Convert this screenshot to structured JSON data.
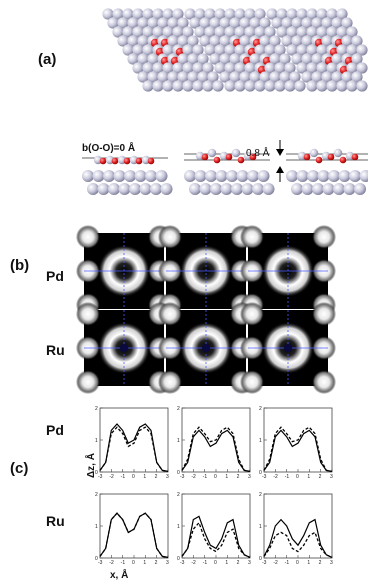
{
  "panel_labels": {
    "a": "(a)",
    "b": "(b)",
    "c": "(c)"
  },
  "side_annotation": {
    "left": "b(O-O)=0 Å",
    "mid": "0.8 Å"
  },
  "row_labels": {
    "pd": "Pd",
    "ru": "Ru"
  },
  "plot_row_labels": {
    "pd": "Pd",
    "ru": "Ru"
  },
  "axis": {
    "xlabel": "x, Å",
    "ylabel": "Δz, Å"
  },
  "chart_data": [
    {
      "type": "line",
      "x": [
        -3,
        -2.5,
        -2,
        -1.5,
        -1,
        -0.5,
        0,
        0.5,
        1,
        1.5,
        2,
        2.5,
        3
      ],
      "series": [
        {
          "values": [
            0.05,
            0.3,
            1.3,
            1.5,
            1.3,
            0.9,
            1.0,
            1.4,
            1.5,
            1.3,
            0.3,
            0.05,
            0.02
          ]
        },
        {
          "values": [
            0.05,
            0.3,
            1.2,
            1.4,
            1.2,
            0.8,
            0.9,
            1.3,
            1.4,
            1.2,
            0.3,
            0.05,
            0.02
          ]
        }
      ],
      "ylim": [
        0,
        2
      ],
      "xticks": [
        -3,
        -2,
        -1,
        0,
        1,
        2,
        3
      ],
      "yticks": [
        0,
        1,
        2
      ]
    },
    {
      "type": "line",
      "x": [
        -3,
        -2.5,
        -2,
        -1.5,
        -1,
        -0.5,
        0,
        0.5,
        1,
        1.5,
        2,
        2.5,
        3
      ],
      "series": [
        {
          "values": [
            0.05,
            0.3,
            1.1,
            1.3,
            1.1,
            0.8,
            0.9,
            1.2,
            1.3,
            1.1,
            0.3,
            0.05,
            0.02
          ]
        },
        {
          "values": [
            0.05,
            0.4,
            1.2,
            1.4,
            1.2,
            0.95,
            1.0,
            1.3,
            1.4,
            1.2,
            0.4,
            0.05,
            0.02
          ]
        }
      ],
      "ylim": [
        0,
        2
      ],
      "xticks": [
        -3,
        -2,
        -1,
        0,
        1,
        2,
        3
      ],
      "yticks": [
        0,
        1,
        2
      ]
    },
    {
      "type": "line",
      "x": [
        -3,
        -2.5,
        -2,
        -1.5,
        -1,
        -0.5,
        0,
        0.5,
        1,
        1.5,
        2,
        2.5,
        3
      ],
      "series": [
        {
          "values": [
            0.05,
            0.3,
            1.1,
            1.3,
            1.1,
            0.8,
            0.9,
            1.2,
            1.3,
            1.1,
            0.3,
            0.05,
            0.02
          ]
        },
        {
          "values": [
            0.05,
            0.4,
            1.2,
            1.4,
            1.2,
            0.95,
            1.0,
            1.3,
            1.4,
            1.2,
            0.4,
            0.05,
            0.02
          ]
        }
      ],
      "ylim": [
        0,
        2
      ],
      "xticks": [
        -3,
        -2,
        -1,
        0,
        1,
        2,
        3
      ],
      "yticks": [
        0,
        1,
        2
      ]
    },
    {
      "type": "line",
      "x": [
        -3,
        -2.5,
        -2,
        -1.5,
        -1,
        -0.5,
        0,
        0.5,
        1,
        1.5,
        2,
        2.5,
        3
      ],
      "series": [
        {
          "values": [
            0.05,
            0.3,
            1.2,
            1.4,
            1.2,
            0.8,
            0.9,
            1.3,
            1.4,
            1.2,
            0.3,
            0.05,
            0.02
          ]
        },
        {
          "values": [
            0.05,
            0.3,
            1.2,
            1.4,
            1.2,
            0.8,
            0.9,
            1.3,
            1.4,
            1.2,
            0.3,
            0.05,
            0.02
          ]
        }
      ],
      "ylim": [
        0,
        2
      ],
      "xticks": [
        -3,
        -2,
        -1,
        0,
        1,
        2,
        3
      ],
      "yticks": [
        0,
        1,
        2
      ]
    },
    {
      "type": "line",
      "x": [
        -3,
        -2.5,
        -2,
        -1.5,
        -1,
        -0.5,
        0,
        0.5,
        1,
        1.5,
        2,
        2.5,
        3
      ],
      "series": [
        {
          "values": [
            0.05,
            0.3,
            1.2,
            1.3,
            0.8,
            0.4,
            0.3,
            0.6,
            1.1,
            1.2,
            0.4,
            0.1,
            0.02
          ]
        },
        {
          "values": [
            0.05,
            0.3,
            0.9,
            1.1,
            0.6,
            0.3,
            0.2,
            0.4,
            0.8,
            0.9,
            0.3,
            0.1,
            0.02
          ]
        }
      ],
      "ylim": [
        0,
        2
      ],
      "xticks": [
        -3,
        -2,
        -1,
        0,
        1,
        2,
        3
      ],
      "yticks": [
        0,
        1,
        2
      ]
    },
    {
      "type": "line",
      "x": [
        -3,
        -2.5,
        -2,
        -1.5,
        -1,
        -0.5,
        0,
        0.5,
        1,
        1.5,
        2,
        2.5,
        3
      ],
      "series": [
        {
          "values": [
            0.05,
            0.4,
            1.0,
            1.2,
            1.0,
            0.6,
            0.4,
            0.7,
            1.1,
            1.2,
            0.4,
            0.1,
            0.02
          ]
        },
        {
          "values": [
            0.05,
            0.3,
            0.7,
            0.8,
            0.7,
            0.3,
            0.2,
            0.4,
            0.7,
            0.8,
            0.3,
            0.1,
            0.02
          ]
        }
      ],
      "ylim": [
        0,
        2
      ],
      "xticks": [
        -3,
        -2,
        -1,
        0,
        1,
        2,
        3
      ],
      "yticks": [
        0,
        1,
        2
      ]
    }
  ]
}
